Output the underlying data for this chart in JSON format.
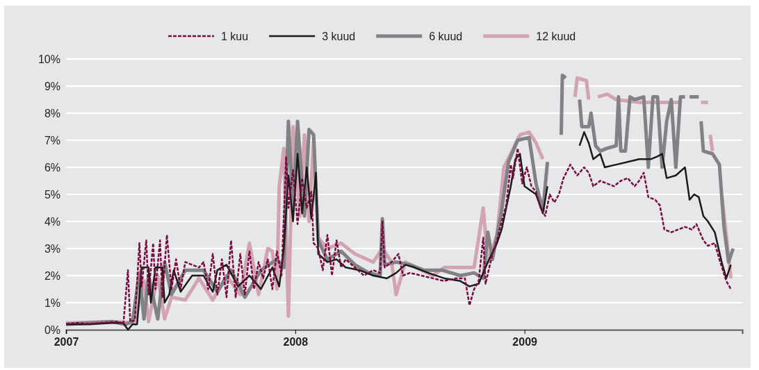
{
  "chart_data": {
    "type": "line",
    "legend": "top",
    "grid": "y",
    "marker": "none",
    "xlim": [
      2007,
      2009.95
    ],
    "xticks": [
      2007,
      2008,
      2009
    ],
    "ylim": [
      0,
      10
    ],
    "yticks": [
      {
        "value": 0,
        "label": "0%"
      },
      {
        "value": 1,
        "label": "1%"
      },
      {
        "value": 2,
        "label": "2%"
      },
      {
        "value": 3,
        "label": "3%"
      },
      {
        "value": 4,
        "label": "4%"
      },
      {
        "value": 5,
        "label": "5%"
      },
      {
        "value": 6,
        "label": "6%"
      },
      {
        "value": 7,
        "label": "7%"
      },
      {
        "value": 8,
        "label": "8%"
      },
      {
        "value": 9,
        "label": "9%"
      },
      {
        "value": 10,
        "label": "10%"
      }
    ],
    "series": [
      {
        "name": "1 kuu",
        "color": "#7b0a41",
        "line_style": "dashed",
        "x": [
          2007.0,
          2007.05,
          2007.1,
          2007.15,
          2007.2,
          2007.23,
          2007.25,
          2007.27,
          2007.28,
          2007.3,
          2007.32,
          2007.33,
          2007.35,
          2007.36,
          2007.38,
          2007.39,
          2007.41,
          2007.42,
          2007.44,
          2007.46,
          2007.48,
          2007.5,
          2007.52,
          2007.55,
          2007.58,
          2007.6,
          2007.62,
          2007.64,
          2007.66,
          2007.68,
          2007.7,
          2007.72,
          2007.74,
          2007.76,
          2007.78,
          2007.8,
          2007.82,
          2007.84,
          2007.86,
          2007.88,
          2007.9,
          2007.92,
          2007.94,
          2007.96,
          2007.97,
          2007.99,
          2008.01,
          2008.03,
          2008.05,
          2008.07,
          2008.08,
          2008.1,
          2008.12,
          2008.14,
          2008.16,
          2008.18,
          2008.2,
          2008.22,
          2008.26,
          2008.3,
          2008.34,
          2008.37,
          2008.38,
          2008.39,
          2008.42,
          2008.45,
          2008.47,
          2008.5,
          2008.55,
          2008.6,
          2008.65,
          2008.7,
          2008.74,
          2008.76,
          2008.78,
          2008.8,
          2008.82,
          2008.83,
          2008.86,
          2008.88,
          2008.9,
          2008.92,
          2008.94,
          2008.95,
          2008.97,
          2008.99,
          2009.01,
          2009.03,
          2009.05,
          2009.07,
          2009.09,
          2009.11,
          2009.13,
          2009.15,
          2009.17,
          2009.2,
          2009.23,
          2009.26,
          2009.28,
          2009.3,
          2009.33,
          2009.36,
          2009.39,
          2009.42,
          2009.45,
          2009.48,
          2009.5,
          2009.52,
          2009.54,
          2009.57,
          2009.59,
          2009.61,
          2009.64,
          2009.67,
          2009.7,
          2009.73,
          2009.75,
          2009.78,
          2009.8,
          2009.83,
          2009.85,
          2009.88,
          2009.9
        ],
        "values": [
          0.22,
          0.25,
          0.22,
          0.25,
          0.28,
          0.3,
          0.2,
          2.2,
          0.3,
          0.35,
          3.2,
          1.6,
          3.3,
          1.3,
          3.2,
          1.5,
          3.3,
          1.2,
          3.5,
          1.5,
          2.6,
          1.5,
          2.5,
          2.4,
          2.3,
          2.5,
          1.5,
          2.8,
          1.3,
          2.6,
          1.2,
          3.3,
          1.2,
          2.8,
          1.3,
          2.9,
          1.5,
          2.5,
          1.9,
          2.6,
          1.5,
          2.9,
          2.0,
          6.4,
          4.5,
          5.9,
          3.9,
          5.6,
          4.5,
          5.1,
          3.2,
          3.0,
          2.2,
          3.5,
          2.0,
          3.3,
          2.3,
          2.6,
          2.3,
          2.0,
          2.2,
          2.1,
          4.0,
          2.3,
          2.5,
          2.8,
          2.0,
          2.1,
          2.0,
          1.9,
          1.8,
          1.9,
          1.9,
          0.9,
          1.5,
          1.8,
          3.4,
          1.7,
          2.8,
          3.3,
          4.0,
          4.6,
          6.1,
          5.6,
          6.7,
          5.4,
          6.0,
          5.3,
          5.1,
          4.5,
          4.2,
          5.0,
          4.7,
          5.0,
          5.6,
          6.1,
          5.7,
          6.0,
          5.8,
          5.3,
          5.5,
          5.4,
          5.3,
          5.5,
          5.6,
          5.3,
          5.5,
          5.8,
          4.9,
          4.8,
          4.6,
          3.7,
          3.6,
          3.7,
          3.8,
          3.7,
          3.9,
          3.3,
          3.1,
          3.2,
          2.6,
          1.8,
          1.5
        ]
      },
      {
        "name": "3 kuud",
        "color": "#1a1a1a",
        "line_style": "solid",
        "x": [
          2007.0,
          2007.1,
          2007.2,
          2007.25,
          2007.27,
          2007.29,
          2007.31,
          2007.33,
          2007.36,
          2007.37,
          2007.39,
          2007.42,
          2007.43,
          2007.45,
          2007.47,
          2007.5,
          2007.55,
          2007.6,
          2007.64,
          2007.66,
          2007.7,
          2007.75,
          2007.8,
          2007.85,
          2007.9,
          2007.93,
          2007.95,
          2007.97,
          2007.99,
          2008.01,
          2008.03,
          2008.05,
          2008.07,
          2008.09,
          2008.1,
          2008.14,
          2008.18,
          2008.22,
          2008.28,
          2008.34,
          2008.4,
          2008.44,
          2008.48,
          2008.52,
          2008.58,
          2008.65,
          2008.72,
          2008.76,
          2008.8,
          2008.84,
          2008.88,
          2008.9,
          2008.92,
          2008.94,
          2008.96,
          2008.98,
          2009.0,
          2009.05,
          2009.08,
          2009.1,
          2009.12,
          2009.24,
          2009.26,
          2009.28,
          2009.3,
          2009.33,
          2009.35,
          2009.4,
          2009.45,
          2009.5,
          2009.55,
          2009.58,
          2009.6,
          2009.62,
          2009.66,
          2009.7,
          2009.72,
          2009.74,
          2009.76,
          2009.78,
          2009.8,
          2009.83,
          2009.86,
          2009.88,
          2009.9
        ],
        "values": [
          0.2,
          0.2,
          0.25,
          0.25,
          0.0,
          0.2,
          0.2,
          2.3,
          2.3,
          1.0,
          2.3,
          2.3,
          1.0,
          1.3,
          2.2,
          1.4,
          2.0,
          2.0,
          1.4,
          2.2,
          2.4,
          1.6,
          2.0,
          1.5,
          2.3,
          1.6,
          3.0,
          5.7,
          4.0,
          6.5,
          4.3,
          6.0,
          4.1,
          5.8,
          2.8,
          2.5,
          2.6,
          2.3,
          2.2,
          2.0,
          1.9,
          2.1,
          2.4,
          2.3,
          2.1,
          1.9,
          1.8,
          1.6,
          1.7,
          2.5,
          3.2,
          3.7,
          4.5,
          5.3,
          6.3,
          6.5,
          5.3,
          5.0,
          4.3,
          5.3,
          null,
          6.8,
          7.3,
          6.9,
          6.3,
          6.5,
          6.0,
          6.1,
          6.2,
          6.3,
          6.3,
          6.4,
          6.5,
          5.6,
          5.7,
          6.0,
          4.8,
          5.0,
          4.9,
          4.2,
          4.0,
          3.6,
          2.5,
          1.9,
          2.4
        ]
      },
      {
        "name": "6 kuud",
        "color": "#808285",
        "line_style": "solid",
        "x": [
          2007.0,
          2007.2,
          2007.26,
          2007.29,
          2007.32,
          2007.34,
          2007.36,
          2007.4,
          2007.43,
          2007.46,
          2007.52,
          2007.6,
          2007.66,
          2007.72,
          2007.78,
          2007.85,
          2007.92,
          2007.95,
          2007.97,
          2007.99,
          2008.01,
          2008.04,
          2008.06,
          2008.08,
          2008.1,
          2008.14,
          2008.2,
          2008.26,
          2008.32,
          2008.37,
          2008.38,
          2008.39,
          2008.44,
          2008.5,
          2008.56,
          2008.64,
          2008.72,
          2008.78,
          2008.82,
          2008.84,
          2008.86,
          2008.9,
          2008.93,
          2008.97,
          2009.02,
          2009.05,
          2009.08,
          2009.1,
          2009.12,
          2009.16,
          2009.165,
          2009.18,
          2009.19,
          2009.24,
          2009.25,
          2009.28,
          2009.29,
          2009.31,
          2009.33,
          2009.36,
          2009.4,
          2009.41,
          2009.42,
          2009.44,
          2009.46,
          2009.48,
          2009.52,
          2009.54,
          2009.56,
          2009.58,
          2009.6,
          2009.62,
          2009.64,
          2009.66,
          2009.68,
          2009.7,
          2009.71,
          2009.72,
          2009.76,
          2009.765,
          2009.77,
          2009.78,
          2009.82,
          2009.85,
          2009.87,
          2009.89,
          2009.91
        ],
        "values": [
          0.2,
          0.3,
          0.2,
          0.3,
          2.1,
          0.4,
          2.0,
          0.4,
          2.5,
          1.3,
          2.2,
          2.2,
          1.4,
          2.2,
          1.2,
          2.2,
          2.6,
          2.3,
          7.7,
          4.4,
          7.7,
          4.2,
          7.4,
          7.2,
          3.3,
          2.6,
          2.9,
          2.4,
          2.1,
          2.0,
          4.1,
          2.4,
          2.5,
          2.4,
          2.2,
          2.2,
          2.0,
          2.1,
          1.9,
          3.6,
          2.6,
          4.4,
          6.2,
          7.0,
          7.1,
          5.4,
          4.4,
          6.2,
          null,
          7.2,
          9.4,
          9.3,
          null,
          8.5,
          7.5,
          7.5,
          8.0,
          6.8,
          6.6,
          6.7,
          6.8,
          8.6,
          6.6,
          6.6,
          8.6,
          8.5,
          8.6,
          6.0,
          8.6,
          8.6,
          6.0,
          7.7,
          8.5,
          6.0,
          8.6,
          8.6,
          null,
          8.6,
          8.6,
          null,
          7.7,
          6.6,
          6.5,
          6.1,
          3.8,
          2.5,
          3.0
        ]
      },
      {
        "name": "12 kuud",
        "color": "#d4a3b2",
        "line_style": "solid",
        "x": [
          2007.0,
          2007.2,
          2007.3,
          2007.34,
          2007.36,
          2007.4,
          2007.43,
          2007.46,
          2007.52,
          2007.58,
          2007.64,
          2007.7,
          2007.76,
          2007.8,
          2007.84,
          2007.88,
          2007.9,
          2007.92,
          2007.93,
          2007.95,
          2007.97,
          2007.99,
          2008.02,
          2008.04,
          2008.06,
          2008.08,
          2008.1,
          2008.14,
          2008.2,
          2008.26,
          2008.34,
          2008.38,
          2008.42,
          2008.44,
          2008.48,
          2008.55,
          2008.6,
          2008.65,
          2008.72,
          2008.78,
          2008.82,
          2008.84,
          2008.88,
          2008.91,
          2008.94,
          2008.98,
          2009.02,
          2009.05,
          2009.08,
          2009.1,
          2009.22,
          2009.23,
          2009.27,
          2009.28,
          2009.29,
          2009.32,
          2009.36,
          2009.4,
          2009.5,
          2009.6,
          2009.68,
          2009.69,
          2009.77,
          2009.8,
          2009.805,
          2009.81,
          2009.82,
          2009.83,
          2009.86,
          2009.88,
          2009.9
        ],
        "values": [
          0.25,
          0.3,
          0.25,
          1.8,
          0.3,
          2.0,
          0.4,
          1.2,
          1.1,
          1.9,
          1.1,
          2.0,
          1.3,
          3.2,
          1.3,
          3.0,
          2.9,
          1.5,
          5.3,
          6.7,
          0.5,
          7.5,
          4.2,
          7.2,
          4.0,
          7.0,
          3.4,
          3.0,
          3.2,
          2.8,
          2.5,
          3.0,
          2.5,
          1.3,
          2.5,
          2.2,
          2.0,
          2.3,
          2.3,
          2.3,
          4.5,
          2.5,
          3.5,
          6.0,
          6.5,
          7.2,
          7.3,
          6.9,
          6.3,
          null,
          8.6,
          9.3,
          9.2,
          8.5,
          null,
          8.6,
          8.7,
          8.5,
          8.4,
          8.4,
          8.4,
          null,
          8.4,
          8.4,
          null,
          7.2,
          6.6,
          null,
          5.0,
          3.5,
          1.9
        ]
      }
    ]
  }
}
